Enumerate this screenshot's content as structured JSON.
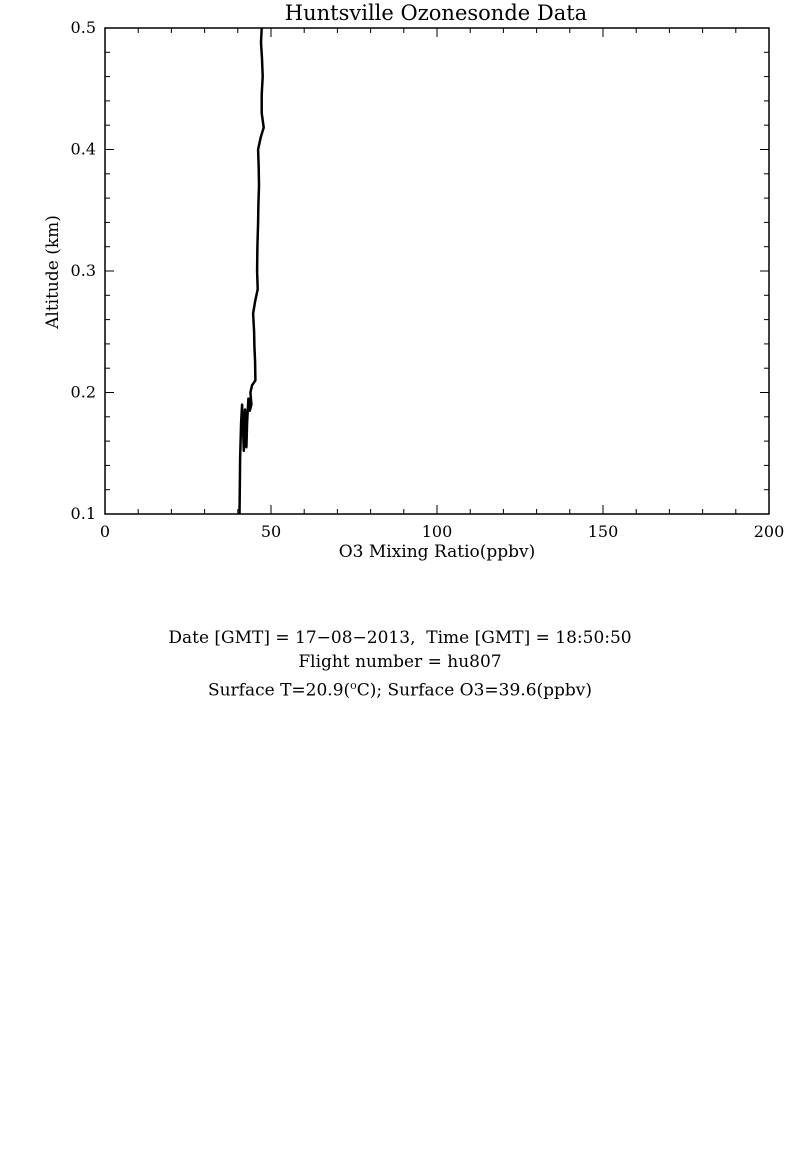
{
  "chart_data": {
    "type": "line",
    "title": "Huntsville Ozonesonde Data",
    "xlabel": "O3 Mixing Ratio(ppbv)",
    "ylabel": "Altitude (km)",
    "xlim": [
      0,
      200
    ],
    "ylim": [
      0.1,
      0.5
    ],
    "x_ticks": [
      "0",
      "50",
      "100",
      "150",
      "200"
    ],
    "y_ticks": [
      "0.1",
      "0.2",
      "0.3",
      "0.4",
      "0.5"
    ],
    "grid": false,
    "series": [
      {
        "points": [
          [
            40.5,
            0.1
          ],
          [
            40.6,
            0.12
          ],
          [
            40.7,
            0.145
          ],
          [
            41.0,
            0.175
          ],
          [
            41.3,
            0.19
          ],
          [
            41.6,
            0.17
          ],
          [
            41.8,
            0.152
          ],
          [
            42.0,
            0.168
          ],
          [
            42.2,
            0.186
          ],
          [
            42.4,
            0.17
          ],
          [
            42.6,
            0.155
          ],
          [
            42.8,
            0.175
          ],
          [
            43.2,
            0.195
          ],
          [
            43.6,
            0.185
          ],
          [
            44.1,
            0.19
          ],
          [
            43.8,
            0.2
          ],
          [
            44.3,
            0.206
          ],
          [
            45.3,
            0.21
          ],
          [
            45.2,
            0.225
          ],
          [
            45.0,
            0.238
          ],
          [
            44.9,
            0.25
          ],
          [
            44.6,
            0.265
          ],
          [
            45.2,
            0.275
          ],
          [
            46.0,
            0.285
          ],
          [
            45.8,
            0.3
          ],
          [
            45.9,
            0.32
          ],
          [
            46.1,
            0.34
          ],
          [
            46.2,
            0.355
          ],
          [
            46.4,
            0.37
          ],
          [
            46.3,
            0.385
          ],
          [
            46.1,
            0.4
          ],
          [
            46.9,
            0.41
          ],
          [
            47.8,
            0.418
          ],
          [
            47.2,
            0.43
          ],
          [
            47.2,
            0.445
          ],
          [
            47.5,
            0.46
          ],
          [
            47.3,
            0.475
          ],
          [
            47.0,
            0.488
          ],
          [
            47.2,
            0.5
          ]
        ]
      }
    ]
  },
  "info": {
    "line1": "Date [GMT] = 17−08−2013,  Time [GMT] = 18:50:50",
    "line2": "Flight number = hu807",
    "line3_pre": "Surface T=20.9(",
    "line3_sup": "o",
    "line3_post": "C); Surface O3=39.6(ppbv)"
  }
}
